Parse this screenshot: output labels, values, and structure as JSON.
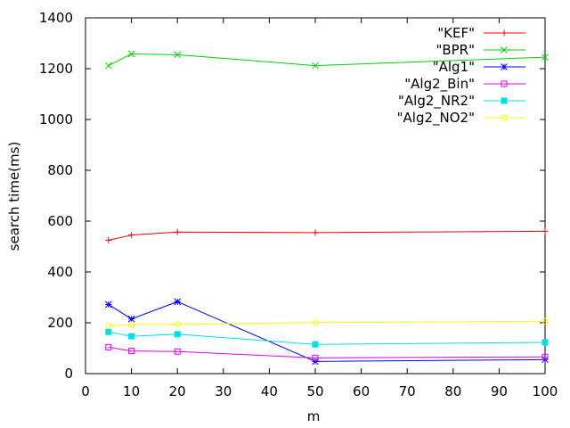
{
  "chart_data": {
    "type": "line",
    "title": "",
    "xlabel": "m",
    "ylabel": "search time(ms)",
    "xlim": [
      0,
      100
    ],
    "ylim": [
      0,
      1400
    ],
    "xticks": [
      0,
      10,
      20,
      30,
      40,
      50,
      60,
      70,
      80,
      90,
      100
    ],
    "yticks": [
      0,
      200,
      400,
      600,
      800,
      1000,
      1200,
      1400
    ],
    "legend_position": "top-right",
    "grid": false,
    "series": [
      {
        "name": "\"KEF\"",
        "color": "#ff0000",
        "marker": "plus",
        "x": [
          5,
          10,
          20,
          50,
          100
        ],
        "y": [
          525,
          545,
          557,
          555,
          560
        ]
      },
      {
        "name": "\"BPR\"",
        "color": "#00d000",
        "marker": "cross",
        "x": [
          5,
          10,
          20,
          50,
          100
        ],
        "y": [
          1212,
          1258,
          1255,
          1212,
          1245
        ]
      },
      {
        "name": "\"Alg1\"",
        "color": "#0000ff",
        "marker": "star",
        "x": [
          5,
          10,
          20,
          50,
          100
        ],
        "y": [
          272,
          215,
          283,
          48,
          55
        ]
      },
      {
        "name": "\"Alg2_Bin\"",
        "color": "#e000e0",
        "marker": "open-square",
        "x": [
          5,
          10,
          20,
          50,
          100
        ],
        "y": [
          104,
          89,
          87,
          62,
          66
        ]
      },
      {
        "name": "\"Alg2_NR2\"",
        "color": "#00e0e0",
        "marker": "filled-square",
        "x": [
          5,
          10,
          20,
          50,
          100
        ],
        "y": [
          164,
          147,
          155,
          115,
          123
        ]
      },
      {
        "name": "\"Alg2_NO2\"",
        "color": "#ffff00",
        "marker": "open-circle",
        "x": [
          5,
          10,
          20,
          50,
          100
        ],
        "y": [
          188,
          193,
          194,
          201,
          206
        ]
      }
    ]
  }
}
